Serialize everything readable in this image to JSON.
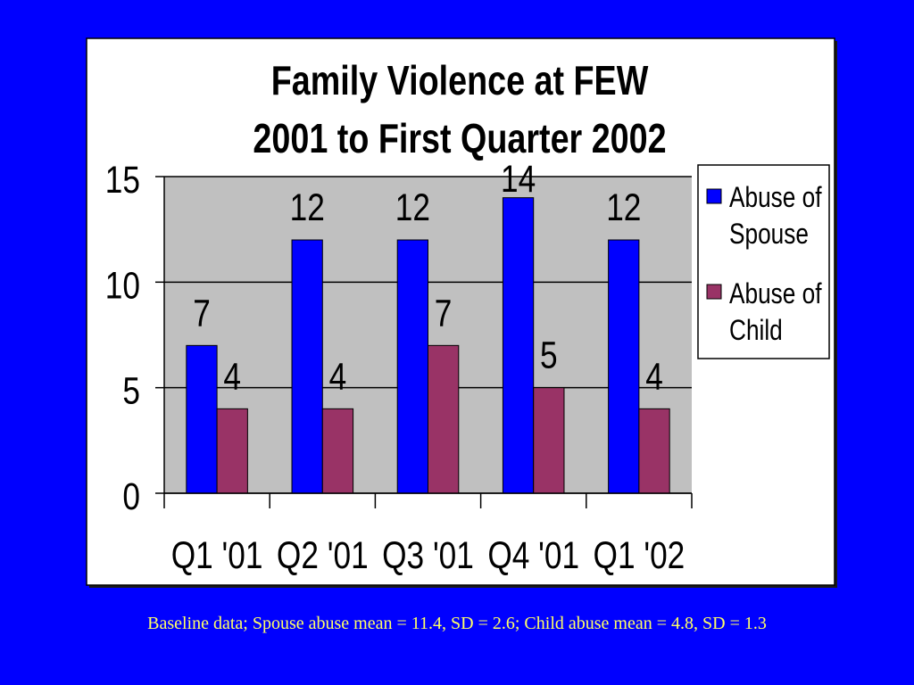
{
  "slide": {
    "background_color": "#0000FF",
    "footnote": "Baseline data; Spouse abuse mean = 11.4, SD = 2.6; Child abuse mean = 4.8, SD = 1.3",
    "footnote_color": "#FFFF66"
  },
  "chart_data": {
    "type": "bar",
    "title": "Family Violence at FEW",
    "subtitle": "2001 to First Quarter 2002",
    "categories": [
      "Q1 '01",
      "Q2 '01",
      "Q3 '01",
      "Q4 '01",
      "Q1 '02"
    ],
    "series": [
      {
        "name": "Abuse of Spouse",
        "color": "#0000FF",
        "values": [
          7,
          12,
          12,
          14,
          12
        ]
      },
      {
        "name": "Abuse of Child",
        "color": "#993366",
        "values": [
          4,
          4,
          7,
          5,
          4
        ]
      }
    ],
    "ylim": [
      0,
      15
    ],
    "yticks": [
      0,
      5,
      10,
      15
    ],
    "grid": true,
    "data_labels": true,
    "legend_position": "right",
    "plot_background": "#C0C0C0"
  }
}
